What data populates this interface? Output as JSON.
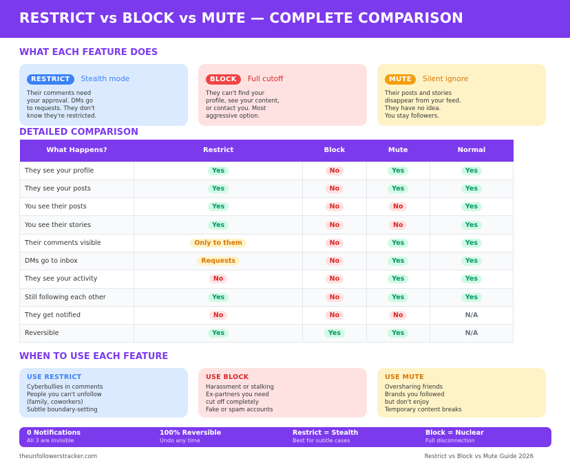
{
  "header": {
    "title": "RESTRICT vs BLOCK vs MUTE — COMPLETE COMPARISON"
  },
  "sections": {
    "features": "WHAT EACH FEATURE DOES",
    "comparison": "DETAILED COMPARISON",
    "when": "WHEN TO USE EACH FEATURE"
  },
  "features": [
    {
      "badge": "RESTRICT",
      "tag": "Stealth mode",
      "desc": "Their comments need\nyour approval. DMs go\nto requests. They don't\nknow they're restricted."
    },
    {
      "badge": "BLOCK",
      "tag": "Full cutoff",
      "desc": "They can't find your\nprofile, see your content,\nor contact you. Most\naggressive option."
    },
    {
      "badge": "MUTE",
      "tag": "Silent ignore",
      "desc": "Their posts and stories\ndisappear from your feed.\nThey have no idea.\nYou stay followers."
    }
  ],
  "table": {
    "headers": [
      "What Happens?",
      "Restrict",
      "Block",
      "Mute",
      "Normal"
    ],
    "rows": [
      {
        "label": "They see your profile",
        "cells": [
          {
            "t": "Yes",
            "k": "yes"
          },
          {
            "t": "No",
            "k": "no"
          },
          {
            "t": "Yes",
            "k": "yes"
          },
          {
            "t": "Yes",
            "k": "yes"
          }
        ]
      },
      {
        "label": "They see your posts",
        "cells": [
          {
            "t": "Yes",
            "k": "yes"
          },
          {
            "t": "No",
            "k": "no"
          },
          {
            "t": "Yes",
            "k": "yes"
          },
          {
            "t": "Yes",
            "k": "yes"
          }
        ]
      },
      {
        "label": "You see their posts",
        "cells": [
          {
            "t": "Yes",
            "k": "yes"
          },
          {
            "t": "No",
            "k": "no"
          },
          {
            "t": "No",
            "k": "no"
          },
          {
            "t": "Yes",
            "k": "yes"
          }
        ]
      },
      {
        "label": "You see their stories",
        "cells": [
          {
            "t": "Yes",
            "k": "yes"
          },
          {
            "t": "No",
            "k": "no"
          },
          {
            "t": "No",
            "k": "no"
          },
          {
            "t": "Yes",
            "k": "yes"
          }
        ]
      },
      {
        "label": "Their comments visible",
        "cells": [
          {
            "t": "Only to them",
            "k": "partial"
          },
          {
            "t": "No",
            "k": "no"
          },
          {
            "t": "Yes",
            "k": "yes"
          },
          {
            "t": "Yes",
            "k": "yes"
          }
        ]
      },
      {
        "label": "DMs go to inbox",
        "cells": [
          {
            "t": "Requests",
            "k": "partial"
          },
          {
            "t": "No",
            "k": "no"
          },
          {
            "t": "Yes",
            "k": "yes"
          },
          {
            "t": "Yes",
            "k": "yes"
          }
        ]
      },
      {
        "label": "They see your activity",
        "cells": [
          {
            "t": "No",
            "k": "no"
          },
          {
            "t": "No",
            "k": "no"
          },
          {
            "t": "Yes",
            "k": "yes"
          },
          {
            "t": "Yes",
            "k": "yes"
          }
        ]
      },
      {
        "label": "Still following each other",
        "cells": [
          {
            "t": "Yes",
            "k": "yes"
          },
          {
            "t": "No",
            "k": "no"
          },
          {
            "t": "Yes",
            "k": "yes"
          },
          {
            "t": "Yes",
            "k": "yes"
          }
        ]
      },
      {
        "label": "They get notified",
        "cells": [
          {
            "t": "No",
            "k": "no"
          },
          {
            "t": "No",
            "k": "no"
          },
          {
            "t": "No",
            "k": "no"
          },
          {
            "t": "N/A",
            "k": "na"
          }
        ]
      },
      {
        "label": "Reversible",
        "cells": [
          {
            "t": "Yes",
            "k": "yes"
          },
          {
            "t": "Yes",
            "k": "yes"
          },
          {
            "t": "Yes",
            "k": "yes"
          },
          {
            "t": "N/A",
            "k": "na"
          }
        ]
      }
    ]
  },
  "use_cases": [
    {
      "title": "USE RESTRICT",
      "items": [
        "Cyberbullies in comments",
        "People you can't unfollow",
        "(family, coworkers)",
        "Subtle boundary-setting"
      ]
    },
    {
      "title": "USE BLOCK",
      "items": [
        "Harassment or stalking",
        "Ex-partners you need",
        "cut off completely",
        "Fake or spam accounts"
      ]
    },
    {
      "title": "USE MUTE",
      "items": [
        "Oversharing friends",
        "Brands you followed",
        "but don't enjoy",
        "Temporary content breaks"
      ]
    }
  ],
  "stats": [
    {
      "title": "0 Notifications",
      "sub": "All 3 are invisible"
    },
    {
      "title": "100% Reversible",
      "sub": "Undo any time"
    },
    {
      "title": "Restrict = Stealth",
      "sub": "Best for subtle cases"
    },
    {
      "title": "Block = Nuclear",
      "sub": "Full disconnection"
    }
  ],
  "footer": {
    "site": "theunfollowerstracker.com",
    "guide": "Restrict vs Block vs Mute Guide 2026"
  },
  "colors": {
    "primary": "#7c3aed",
    "restrict": "#3b82f6",
    "block": "#ef4444",
    "mute": "#f59e0b",
    "restrict_text": "#3b82f6",
    "block_text": "#dc2626",
    "mute_text": "#d97706"
  }
}
